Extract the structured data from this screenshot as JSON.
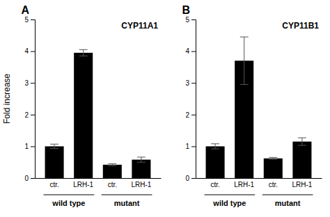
{
  "chart_data": [
    {
      "type": "bar",
      "title": "CYP11A1",
      "categories": [
        "ctr.",
        "LRH-1",
        "ctr.",
        "LRH-1"
      ],
      "values": [
        1.0,
        3.95,
        0.42,
        0.58
      ],
      "errors": [
        0.07,
        0.1,
        0.03,
        0.08
      ],
      "group_labels": [
        "wild type",
        "mutant"
      ],
      "annotations": [
        "A"
      ],
      "y_label": "Fold increase",
      "color": "#000000",
      "ylim": [
        0,
        5
      ],
      "yticks": [
        0,
        1,
        2,
        3,
        4,
        5
      ],
      "grid": false
    },
    {
      "type": "bar",
      "title": "CYP11B1",
      "categories": [
        "ctr.",
        "LRH-1",
        "ctr.",
        "LRH-1"
      ],
      "values": [
        1.0,
        3.7,
        0.62,
        1.15
      ],
      "errors": [
        0.08,
        0.75,
        0.03,
        0.12
      ],
      "group_labels": [
        "wild type",
        "mutant"
      ],
      "annotations": [
        "B"
      ],
      "color": "#000000",
      "ylim": [
        0,
        5
      ],
      "yticks": [
        0,
        1,
        2,
        3,
        4,
        5
      ],
      "grid": false
    }
  ]
}
